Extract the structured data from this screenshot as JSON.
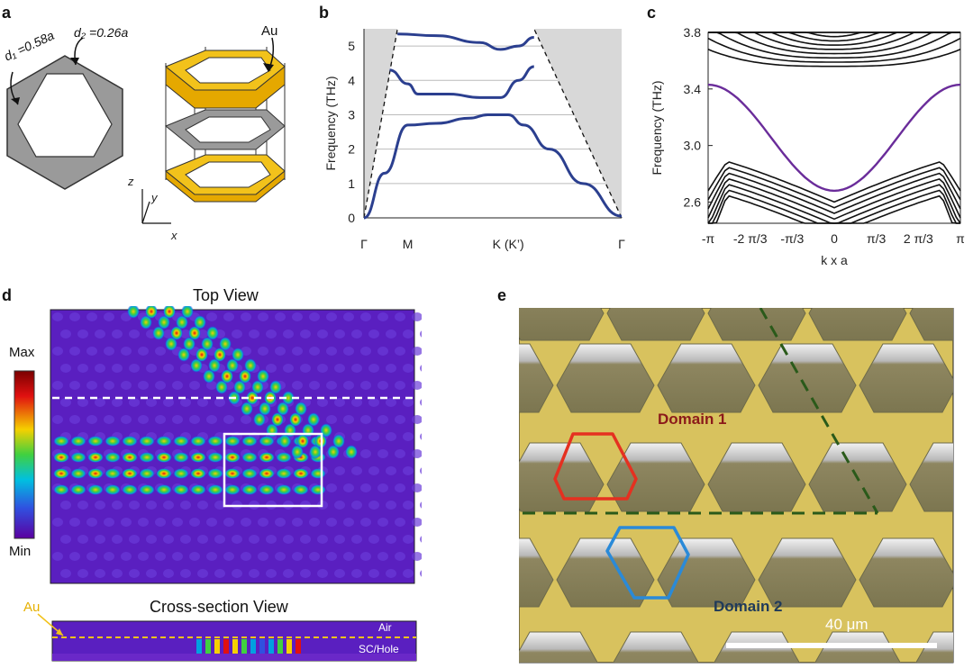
{
  "panels": {
    "a": {
      "label": "a",
      "d1": "d₁ =0.58a",
      "d2": "d₂ =0.26a",
      "au": "Au",
      "axes": [
        "z",
        "y",
        "x"
      ]
    },
    "b": {
      "label": "b"
    },
    "c": {
      "label": "c"
    },
    "d": {
      "label": "d",
      "top_title": "Top View",
      "cross_title": "Cross-section View",
      "colorbar_max": "Max",
      "colorbar_min": "Min",
      "au": "Au",
      "air": "Air",
      "sc_hole": "SC/Hole"
    },
    "e": {
      "label": "e",
      "domain1": "Domain 1",
      "domain2": "Domain 2",
      "scale": "40 μm"
    }
  },
  "colors": {
    "band_blue": "#2b3f8f",
    "band_purple": "#6a2c9a",
    "gold": "#f2c21b",
    "sem_gold": "#d8c25e",
    "domain1": "#8b1a1a",
    "domain2": "#1f3a5a",
    "red_outline": "#e53020",
    "blue_outline": "#2a8ad8",
    "green_dash": "#2a5a1a"
  },
  "chart_data": [
    {
      "type": "line",
      "panel": "b",
      "ylabel": "Frequency (THz)",
      "xlabel": "",
      "x_ticks": [
        "Γ",
        "M",
        "K (K’)",
        "Γ"
      ],
      "y_ticks": [
        "0",
        "1",
        "2",
        "3",
        "4",
        "5"
      ],
      "ylim": [
        0,
        5.5
      ],
      "grid": true,
      "x_pos": [
        0,
        0.17,
        0.56,
        1.0
      ],
      "series": [
        {
          "values": [
            [
              0,
              0
            ],
            [
              0.08,
              1.3
            ],
            [
              0.17,
              2.7
            ],
            [
              0.28,
              2.75
            ],
            [
              0.41,
              2.9
            ],
            [
              0.48,
              3.0
            ],
            [
              0.56,
              3.0
            ],
            [
              0.62,
              2.7
            ],
            [
              0.72,
              2.0
            ],
            [
              0.85,
              1.0
            ],
            [
              1.0,
              0.05
            ]
          ]
        },
        {
          "values": [
            [
              0.1,
              4.3
            ],
            [
              0.17,
              3.9
            ],
            [
              0.21,
              3.6
            ],
            [
              0.33,
              3.6
            ],
            [
              0.45,
              3.5
            ],
            [
              0.53,
              3.5
            ],
            [
              0.6,
              4.0
            ],
            [
              0.66,
              4.4
            ]
          ]
        },
        {
          "values": [
            [
              0.13,
              5.35
            ],
            [
              0.28,
              5.3
            ],
            [
              0.45,
              5.1
            ],
            [
              0.53,
              4.9
            ],
            [
              0.6,
              5.0
            ],
            [
              0.66,
              5.25
            ]
          ]
        }
      ],
      "light_cone": [
        [
          0,
          0
        ],
        [
          0.13,
          5.5
        ],
        [
          0.66,
          5.5
        ],
        [
          1.0,
          0
        ]
      ]
    },
    {
      "type": "line",
      "panel": "c",
      "ylabel": "Frequency (THz)",
      "xlabel": "k x a",
      "x_ticks": [
        "-π",
        "-2 π/3",
        "-π/3",
        "0",
        "π/3",
        "2 π/3",
        "π"
      ],
      "y_ticks": [
        "2.6",
        "3.0",
        "3.4",
        "3.8"
      ],
      "ylim": [
        2.45,
        3.8
      ],
      "edge_state": "purple band from 3.43 at ±π down to 2.68 at 0"
    }
  ]
}
